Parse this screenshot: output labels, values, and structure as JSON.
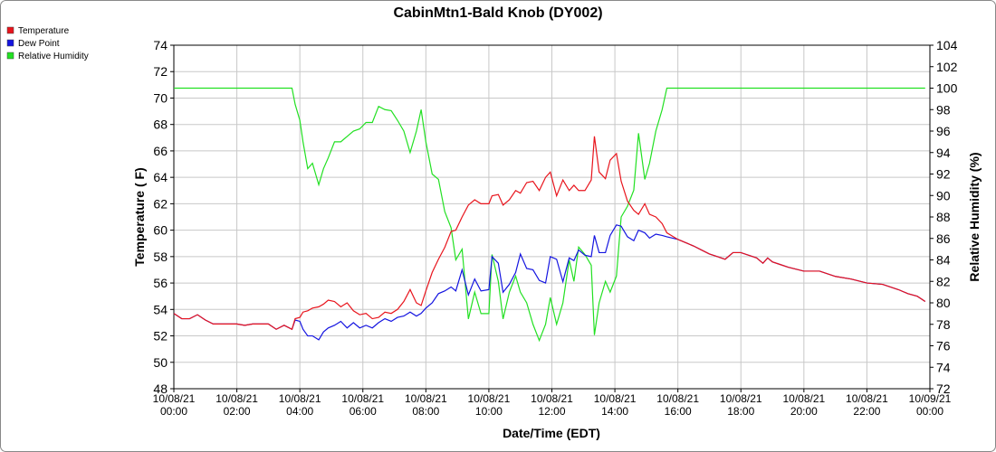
{
  "chart_data": {
    "type": "line",
    "title": "CabinMtn1-Bald Knob (DY002)",
    "x_label": "Date/Time (EDT)",
    "y_label": "Temperature ( F)",
    "y2_label": "Relative Humidity (%)",
    "grid": true,
    "legend": "top-left",
    "x": [
      0,
      0.25,
      0.5,
      0.75,
      1,
      1.25,
      1.5,
      2,
      2.25,
      2.5,
      3,
      3.25,
      3.5,
      3.75,
      3.85,
      4,
      4.1,
      4.25,
      4.4,
      4.6,
      4.75,
      4.9,
      5.1,
      5.3,
      5.5,
      5.7,
      5.9,
      6.1,
      6.3,
      6.5,
      6.7,
      6.9,
      7.1,
      7.3,
      7.5,
      7.7,
      7.85,
      8,
      8.2,
      8.4,
      8.6,
      8.8,
      8.95,
      9.15,
      9.35,
      9.55,
      9.75,
      10,
      10.1,
      10.3,
      10.45,
      10.65,
      10.85,
      11,
      11.2,
      11.4,
      11.6,
      11.8,
      11.95,
      12.15,
      12.35,
      12.55,
      12.7,
      12.85,
      13.05,
      13.25,
      13.35,
      13.5,
      13.7,
      13.85,
      14.05,
      14.2,
      14.4,
      14.6,
      14.75,
      14.95,
      15.1,
      15.3,
      15.5,
      15.65,
      16,
      16.3,
      16.5,
      16.75,
      17,
      17.25,
      17.5,
      17.75,
      18,
      18.5,
      18.7,
      18.85,
      19,
      19.25,
      19.5,
      20,
      20.5,
      21,
      21.5,
      22,
      22.5,
      23,
      23.3,
      23.6,
      23.85
    ],
    "xlim": [
      0,
      24
    ],
    "xticks": [
      {
        "value": 0,
        "label": [
          "10/08/21",
          "00:00"
        ]
      },
      {
        "value": 2,
        "label": [
          "10/08/21",
          "02:00"
        ]
      },
      {
        "value": 4,
        "label": [
          "10/08/21",
          "04:00"
        ]
      },
      {
        "value": 6,
        "label": [
          "10/08/21",
          "06:00"
        ]
      },
      {
        "value": 8,
        "label": [
          "10/08/21",
          "08:00"
        ]
      },
      {
        "value": 10,
        "label": [
          "10/08/21",
          "10:00"
        ]
      },
      {
        "value": 12,
        "label": [
          "10/08/21",
          "12:00"
        ]
      },
      {
        "value": 14,
        "label": [
          "10/08/21",
          "14:00"
        ]
      },
      {
        "value": 16,
        "label": [
          "10/08/21",
          "16:00"
        ]
      },
      {
        "value": 18,
        "label": [
          "10/08/21",
          "18:00"
        ]
      },
      {
        "value": 20,
        "label": [
          "10/08/21",
          "20:00"
        ]
      },
      {
        "value": 22,
        "label": [
          "10/08/21",
          "22:00"
        ]
      },
      {
        "value": 24,
        "label": [
          "10/09/21",
          "00:00"
        ]
      }
    ],
    "ylim": [
      48,
      74
    ],
    "yticks": [
      48,
      50,
      52,
      54,
      56,
      58,
      60,
      62,
      64,
      66,
      68,
      70,
      72,
      74
    ],
    "y2lim": [
      72,
      104
    ],
    "y2ticks": [
      72,
      74,
      76,
      78,
      80,
      82,
      84,
      86,
      88,
      90,
      92,
      94,
      96,
      98,
      100,
      102,
      104
    ],
    "series": [
      {
        "name": "Temperature",
        "color": "#e8141c",
        "values": [
          53.7,
          53.3,
          53.3,
          53.6,
          53.2,
          52.9,
          52.9,
          52.9,
          52.8,
          52.9,
          52.9,
          52.5,
          52.8,
          52.5,
          53.3,
          53.4,
          53.8,
          53.9,
          54.1,
          54.2,
          54.4,
          54.7,
          54.6,
          54.2,
          54.5,
          53.9,
          53.6,
          53.7,
          53.3,
          53.4,
          53.8,
          53.7,
          54.0,
          54.6,
          55.5,
          54.5,
          54.3,
          55.4,
          56.8,
          57.8,
          58.7,
          59.9,
          60.0,
          61.0,
          61.9,
          62.3,
          62.0,
          62.0,
          62.6,
          62.7,
          61.9,
          62.3,
          63.0,
          62.8,
          63.6,
          63.7,
          63.0,
          64.0,
          64.4,
          62.6,
          63.8,
          63.0,
          63.4,
          63.0,
          63.0,
          63.8,
          67.1,
          64.4,
          63.9,
          65.3,
          65.8,
          63.7,
          62.2,
          61.5,
          61.2,
          62.0,
          61.2,
          61.0,
          60.5,
          59.8,
          59.3,
          59.0,
          58.8,
          58.5,
          58.2,
          58.0,
          57.8,
          58.3,
          58.3,
          57.9,
          57.5,
          57.9,
          57.6,
          57.4,
          57.2,
          56.9,
          56.9,
          56.5,
          56.3,
          56.0,
          55.9,
          55.5,
          55.2,
          55.0,
          54.6
        ]
      },
      {
        "name": "Dew Point",
        "color": "#1414e0",
        "values": [
          53.7,
          53.3,
          53.3,
          53.6,
          53.2,
          52.9,
          52.9,
          52.9,
          52.8,
          52.9,
          52.9,
          52.5,
          52.8,
          52.5,
          53.2,
          53.1,
          52.5,
          52.0,
          52.0,
          51.7,
          52.3,
          52.6,
          52.8,
          53.1,
          52.6,
          53.0,
          52.6,
          52.8,
          52.6,
          53.0,
          53.3,
          53.1,
          53.4,
          53.5,
          53.8,
          53.5,
          53.7,
          54.1,
          54.5,
          55.2,
          55.4,
          55.7,
          55.4,
          57.0,
          55.1,
          56.3,
          55.4,
          55.5,
          58.0,
          57.5,
          55.3,
          55.9,
          56.8,
          58.2,
          57.1,
          57.0,
          56.2,
          56.0,
          58.0,
          57.8,
          56.1,
          57.9,
          57.7,
          58.5,
          58.1,
          58.0,
          59.6,
          58.3,
          58.3,
          59.6,
          60.4,
          60.3,
          59.5,
          59.2,
          60.0,
          59.8,
          59.4,
          59.7,
          59.6,
          59.5,
          59.3,
          59.0,
          58.8,
          58.5,
          58.2,
          58.0,
          57.8,
          58.3,
          58.3,
          57.9,
          57.5,
          57.9,
          57.6,
          57.4,
          57.2,
          56.9,
          56.9,
          56.5,
          56.3,
          56.0,
          55.9,
          55.5,
          55.2,
          55.0,
          54.6
        ]
      },
      {
        "name": "Relative Humidity",
        "color": "#22e022",
        "axis": "y2",
        "values": [
          100,
          100,
          100,
          100,
          100,
          100,
          100,
          100,
          100,
          100,
          100,
          100,
          100,
          100,
          98.5,
          97,
          95,
          92.5,
          93,
          91,
          92.5,
          93.5,
          95,
          95,
          95.5,
          96,
          96.2,
          96.8,
          96.8,
          98.3,
          98,
          97.9,
          97,
          96,
          94,
          96,
          98,
          95,
          92,
          91.5,
          88.5,
          87,
          84,
          85,
          78.5,
          81,
          79,
          79,
          84.5,
          82,
          78.5,
          81,
          82.5,
          81,
          80,
          78,
          76.5,
          78,
          80.5,
          78,
          80,
          84,
          82,
          85.2,
          84.5,
          83.5,
          77,
          80,
          82,
          81,
          82.5,
          88,
          89,
          90.5,
          95.8,
          91.5,
          93,
          96,
          98,
          100,
          100,
          100,
          100,
          100,
          100,
          100,
          100,
          100,
          100,
          100,
          100,
          100,
          100,
          100,
          100,
          100,
          100,
          100,
          100,
          100,
          100,
          100,
          100,
          100,
          100
        ]
      }
    ]
  }
}
